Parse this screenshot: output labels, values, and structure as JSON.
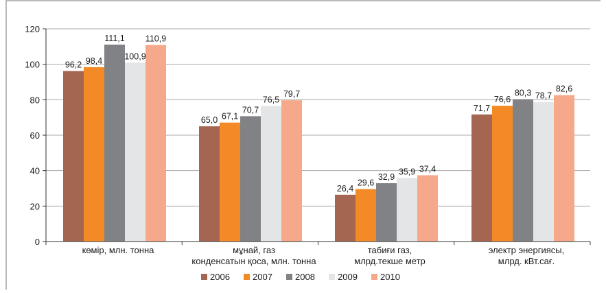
{
  "chart_data": {
    "type": "bar",
    "title": "",
    "xlabel": "",
    "ylabel": "",
    "ylim": [
      0,
      120
    ],
    "yticks": [
      "0",
      "20",
      "40",
      "60",
      "80",
      "100",
      "120"
    ],
    "grid": true,
    "legend_position": "bottom",
    "categories": [
      [
        "көмір, млн. тонна"
      ],
      [
        "мұнай, газ",
        "конденсатын қоса, млн. тонна"
      ],
      [
        "табиғи газ,",
        "млрд.текше метр"
      ],
      [
        "электр энергиясы,",
        "млрд. кВт.сағ."
      ]
    ],
    "series": [
      {
        "name": "2006",
        "color": "#a56651",
        "values": [
          96.2,
          65.0,
          26.4,
          71.7
        ],
        "labels": [
          "96,2",
          "65,0",
          "26,4",
          "71,7"
        ]
      },
      {
        "name": "2007",
        "color": "#f38a26",
        "values": [
          98.4,
          67.1,
          29.6,
          76.6
        ],
        "labels": [
          "98,4",
          "67,1",
          "29,6",
          "76,6"
        ]
      },
      {
        "name": "2008",
        "color": "#818285",
        "values": [
          111.1,
          70.7,
          32.9,
          80.3
        ],
        "labels": [
          "111,1",
          "70,7",
          "32,9",
          "80,3"
        ]
      },
      {
        "name": "2009",
        "color": "#e4e5e7",
        "values": [
          100.9,
          76.5,
          35.9,
          78.7
        ],
        "labels": [
          "100,9",
          "76,5",
          "35,9",
          "78,7"
        ]
      },
      {
        "name": "2010",
        "color": "#f6a98a",
        "values": [
          110.9,
          79.7,
          37.4,
          82.6
        ],
        "labels": [
          "110,9",
          "79,7",
          "37,4",
          "82,6"
        ]
      }
    ]
  }
}
